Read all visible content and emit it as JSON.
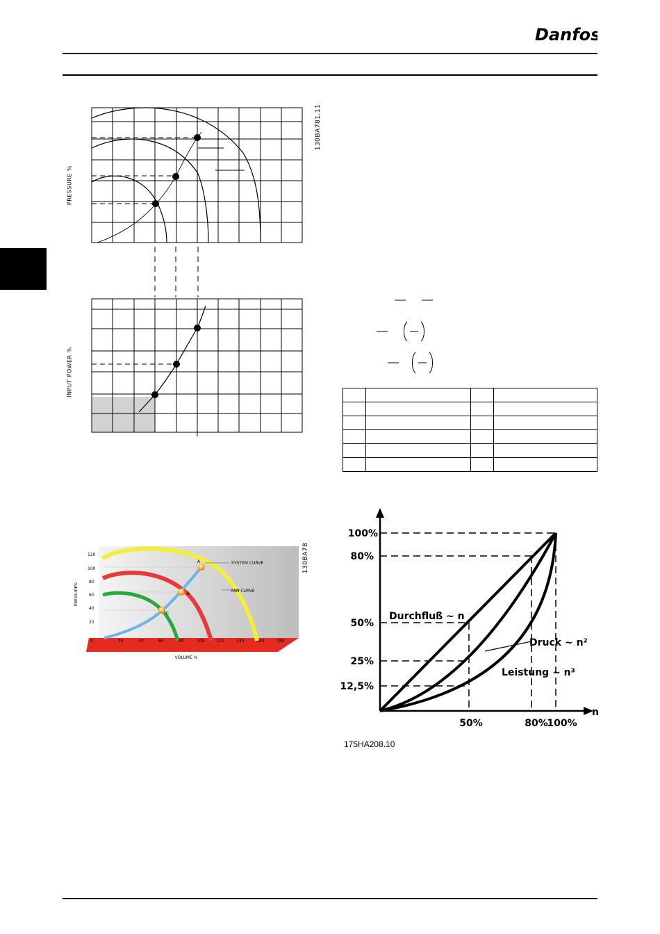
{
  "page": {
    "brand": "Danfoss",
    "section_tab": ""
  },
  "figure_codes": {
    "pressure_power": "130BA781.11",
    "fan_curve": "130BA78",
    "affinity": "175HA208.10"
  },
  "pressure_chart": {
    "ylabel": "PRESSURE %"
  },
  "power_chart": {
    "ylabel": "INPUT POWER %"
  },
  "fan_chart": {
    "ylabel": "PRESSURE%",
    "xlabel": "VOLUME %",
    "point_labels": [
      "A",
      "B",
      "C"
    ],
    "system_curve_label": "SYSTEM CURVE",
    "fan_curve_label": "FAN CURVE",
    "y_ticks": [
      "120",
      "100",
      "80",
      "60",
      "40",
      "20",
      "0"
    ],
    "x_ticks": [
      "20",
      "40",
      "60",
      "80",
      "100",
      "120",
      "140",
      "160",
      "180"
    ],
    "colors": {
      "yellow": "#f2ee3a",
      "red": "#e53b3b",
      "green": "#27a83c",
      "blue": "#6cb4e8",
      "floor": "#e52b1f"
    }
  },
  "affinity_chart": {
    "y_ticks": [
      "100%",
      "80%",
      "50%",
      "25%",
      "12,5%"
    ],
    "x_ticks": [
      "50%",
      "80%",
      "100%"
    ],
    "x_axis": "n",
    "flow_label": "Durchfluß ~ n",
    "pressure_label": "Druck ~ n²",
    "power_label": "Leistung ~ n³"
  },
  "chart_data": [
    {
      "type": "line",
      "title": "",
      "ylabel": "PRESSURE %",
      "xlabel": "",
      "grid": true,
      "points": [
        [
          0.3,
          0.18
        ],
        [
          0.4,
          0.31
        ],
        [
          0.5,
          0.49
        ]
      ]
    },
    {
      "type": "line",
      "title": "",
      "ylabel": "INPUT POWER %",
      "xlabel": "",
      "grid": true,
      "points": [
        [
          0.3,
          0.17
        ],
        [
          0.4,
          0.33
        ],
        [
          0.5,
          0.49
        ]
      ]
    },
    {
      "type": "line",
      "title": "",
      "xlabel": "VOLUME %",
      "ylabel": "PRESSURE%",
      "xlim": [
        0,
        180
      ],
      "ylim": [
        0,
        120
      ],
      "grid": false,
      "series": [
        {
          "name": "SYSTEM CURVE",
          "x": [
            0,
            60,
            80,
            100
          ],
          "y": [
            0,
            37,
            62,
            100
          ]
        },
        {
          "name": "FAN CURVE",
          "x": [
            0,
            40,
            100,
            160
          ],
          "y": [
            110,
            120,
            105,
            0
          ]
        }
      ],
      "points": [
        {
          "label": "A",
          "x": 100,
          "y": 100
        },
        {
          "label": "B",
          "x": 80,
          "y": 62
        },
        {
          "label": "C",
          "x": 60,
          "y": 37
        }
      ]
    },
    {
      "type": "line",
      "title": "",
      "xlabel": "n",
      "ylabel": "",
      "x_ticks": [
        "50%",
        "80%",
        "100%"
      ],
      "y_ticks": [
        "100%",
        "80%",
        "50%",
        "25%",
        "12,5%"
      ],
      "series": [
        {
          "name": "Durchfluß ~ n",
          "x": [
            0,
            50,
            80,
            100
          ],
          "y": [
            0,
            50,
            80,
            100
          ]
        },
        {
          "name": "Druck ~ n²",
          "x": [
            0,
            50,
            80,
            100
          ],
          "y": [
            0,
            25,
            64,
            100
          ]
        },
        {
          "name": "Leistung ~ n³",
          "x": [
            0,
            50,
            80,
            100
          ],
          "y": [
            0,
            12.5,
            51.2,
            100
          ]
        }
      ]
    }
  ]
}
